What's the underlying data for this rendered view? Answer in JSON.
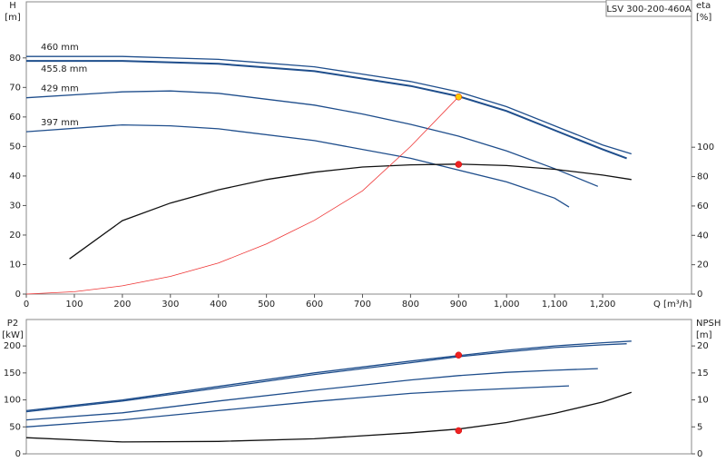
{
  "chart_data": [
    {
      "type": "line",
      "title": "LSV 300-200-460A",
      "xlabel": "Q [m³/h]",
      "ylabel": "H",
      "ylabel_unit": "[m]",
      "y2label": "eta",
      "y2label_unit": "[%]",
      "xlim": [
        0,
        1385
      ],
      "ylim": [
        0,
        99
      ],
      "y2lim": [
        0,
        199
      ],
      "xticks": [
        0,
        100,
        200,
        300,
        400,
        500,
        600,
        700,
        800,
        900,
        {
          "value": 1000,
          "label": "1,000"
        },
        {
          "value": 1100,
          "label": "1,100"
        },
        {
          "value": 1200,
          "label": "1,200"
        }
      ],
      "yticks": [
        0,
        10,
        20,
        30,
        40,
        50,
        60,
        70,
        80
      ],
      "y2ticks": [
        0,
        20,
        40,
        60,
        80,
        100
      ],
      "series": [
        {
          "name": "460 mm",
          "color": "#1f4e8c",
          "x": [
            0,
            200,
            400,
            600,
            800,
            900,
            1000,
            1100,
            1200,
            1260
          ],
          "values": [
            80.5,
            80.5,
            79.5,
            77,
            72,
            68.5,
            63.5,
            57,
            50.5,
            47.5
          ]
        },
        {
          "name": "455.8 mm",
          "color": "#1f4e8c",
          "x": [
            0,
            200,
            400,
            600,
            800,
            900,
            1000,
            1100,
            1200,
            1250
          ],
          "values": [
            79,
            79,
            78,
            75.5,
            70.5,
            67,
            62,
            55.5,
            49,
            46
          ]
        },
        {
          "name": "429 mm",
          "color": "#1f4e8c",
          "x": [
            0,
            200,
            300,
            400,
            600,
            700,
            800,
            900,
            1000,
            1100,
            1190
          ],
          "values": [
            66.5,
            68.5,
            68.8,
            68,
            64,
            61,
            57.5,
            53.5,
            48.5,
            42.5,
            36.5
          ]
        },
        {
          "name": "397 mm",
          "color": "#1f4e8c",
          "x": [
            0,
            200,
            300,
            400,
            600,
            800,
            900,
            1000,
            1100,
            1130
          ],
          "values": [
            55,
            57.3,
            57,
            56,
            52,
            46,
            42,
            38,
            32.5,
            29.5
          ]
        },
        {
          "color": "#111111",
          "axis": "y2",
          "x": [
            90,
            200,
            300,
            400,
            500,
            600,
            700,
            800,
            900,
            1000,
            1100,
            1200,
            1260
          ],
          "values": [
            24,
            50,
            62,
            71,
            78,
            83,
            86.5,
            88,
            88.5,
            87.5,
            85,
            81,
            78
          ]
        },
        {
          "color": "#ee3333",
          "x": [
            0,
            100,
            200,
            300,
            400,
            500,
            600,
            700,
            800,
            900
          ],
          "values": [
            0,
            0.8,
            2.8,
            6,
            10.5,
            17,
            25,
            35,
            50,
            66.8
          ]
        },
        {
          "color": "#ffcc00",
          "marker": true,
          "x": [
            900
          ],
          "values": [
            66.8
          ]
        },
        {
          "color": "#ee2222",
          "marker": true,
          "axis": "y2",
          "x": [
            900
          ],
          "values": [
            88.3
          ]
        }
      ]
    },
    {
      "type": "line",
      "ylabel": "P2",
      "ylabel_unit": "[kW]",
      "y2label": "NPSH",
      "y2label_unit": "[m]",
      "xlim": [
        0,
        1385
      ],
      "ylim": [
        0,
        249
      ],
      "y2lim": [
        0,
        24.9
      ],
      "yticks": [
        0,
        50,
        100,
        150,
        200
      ],
      "y2ticks": [
        0,
        5,
        10,
        15,
        20
      ],
      "series": [
        {
          "color": "#1f4e8c",
          "x": [
            0,
            200,
            400,
            600,
            800,
            900,
            1000,
            1100,
            1200,
            1260
          ],
          "values": [
            80,
            100,
            125,
            150,
            172,
            182,
            192,
            200,
            206,
            209
          ]
        },
        {
          "color": "#1f4e8c",
          "x": [
            0,
            200,
            400,
            600,
            800,
            900,
            1000,
            1100,
            1200,
            1250
          ],
          "values": [
            78,
            98,
            122,
            147,
            169,
            180,
            189,
            197,
            202,
            204
          ]
        },
        {
          "color": "#1f4e8c",
          "x": [
            0,
            200,
            400,
            600,
            800,
            900,
            1000,
            1100,
            1190
          ],
          "values": [
            63,
            76,
            98,
            118,
            137,
            145,
            151,
            155,
            158
          ]
        },
        {
          "color": "#1f4e8c",
          "x": [
            0,
            200,
            400,
            600,
            800,
            900,
            1000,
            1130
          ],
          "values": [
            50,
            63,
            80,
            97,
            112,
            117,
            121,
            126
          ]
        },
        {
          "color": "#111111",
          "axis": "y2",
          "x": [
            0,
            200,
            400,
            600,
            800,
            900,
            1000,
            1100,
            1200,
            1260
          ],
          "values": [
            3,
            2.2,
            2.3,
            2.8,
            3.9,
            4.6,
            5.8,
            7.5,
            9.6,
            11.4
          ]
        },
        {
          "color": "#ee2222",
          "marker": true,
          "x": [
            900
          ],
          "values": [
            183
          ]
        },
        {
          "color": "#ee2222",
          "marker": true,
          "axis": "y2",
          "x": [
            900
          ],
          "values": [
            4.3
          ]
        }
      ]
    }
  ]
}
